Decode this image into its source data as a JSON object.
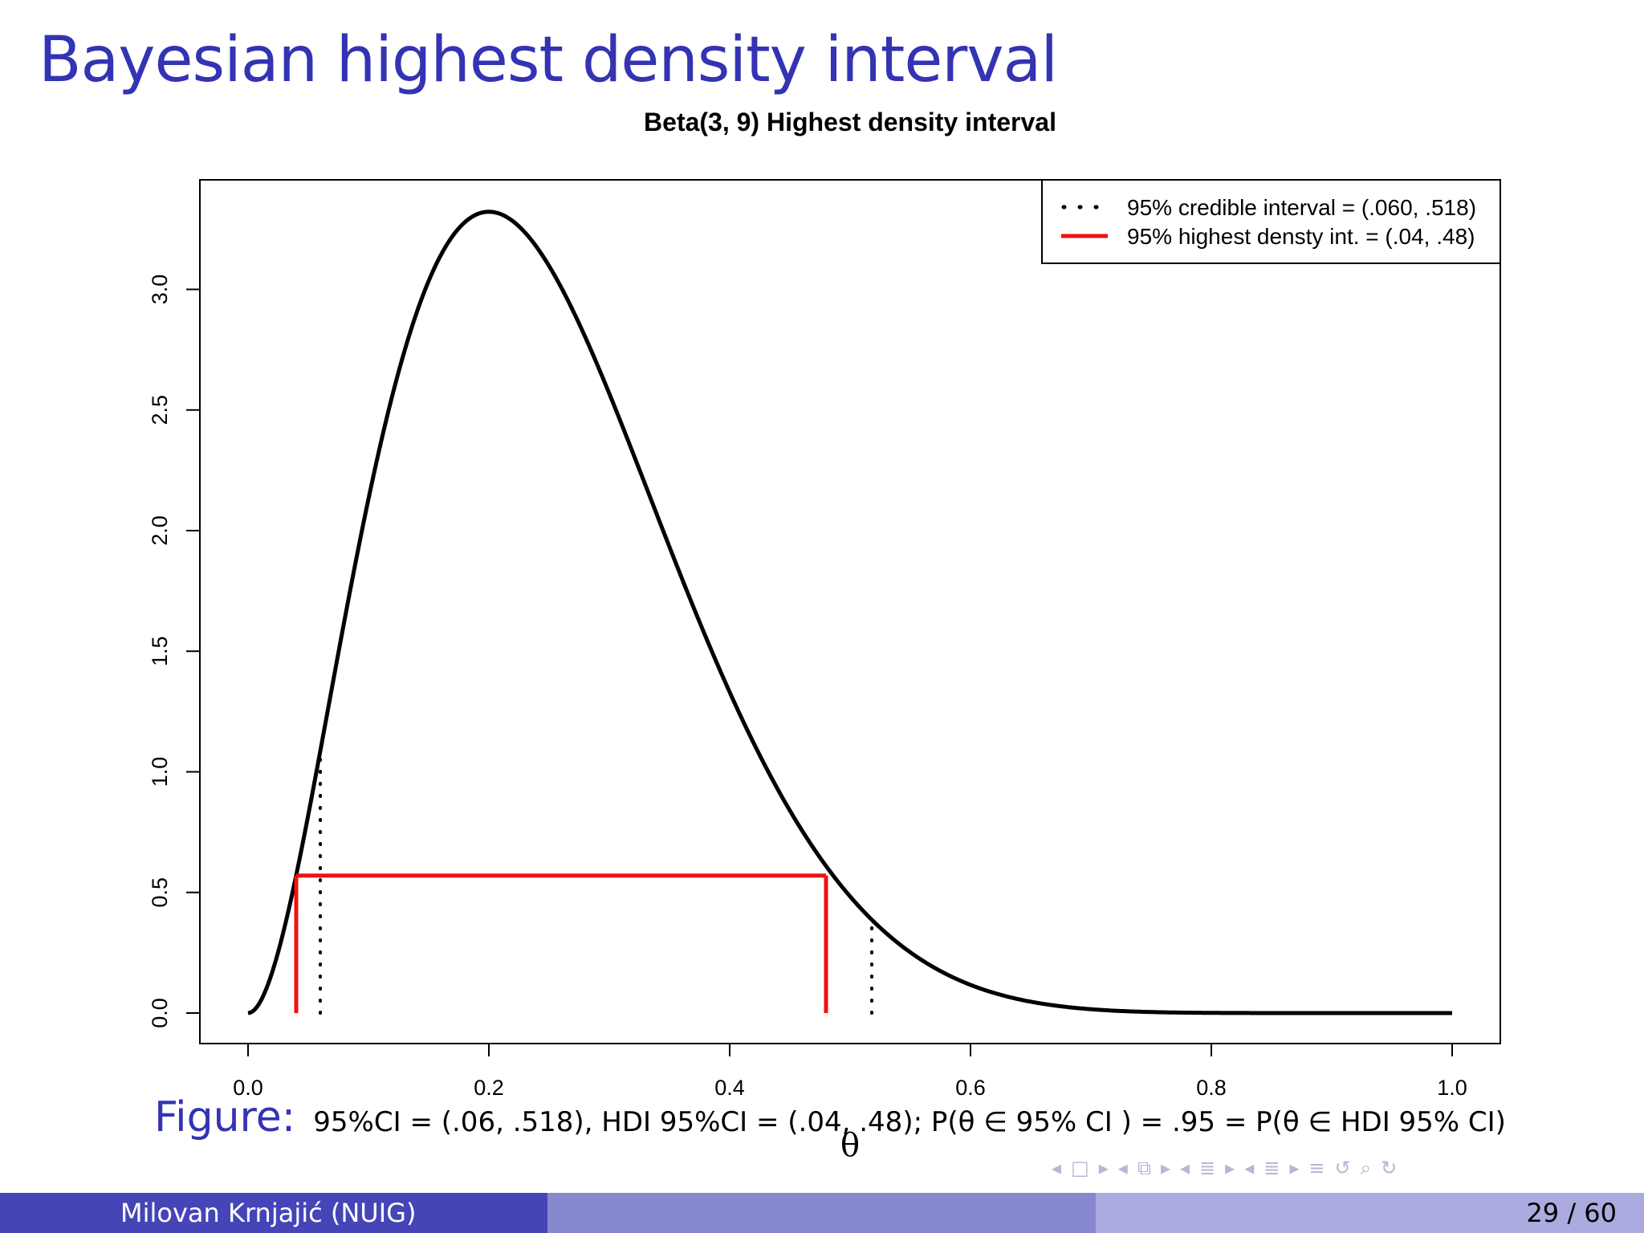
{
  "slide": {
    "title": "Bayesian highest density interval",
    "author": "Milovan Krnjajić  (NUIG)",
    "page": "29 / 60",
    "colors": {
      "title": "#3333b3",
      "footer_dark": "#4545b8",
      "footer_mid": "#8787cf",
      "footer_light": "#ababe0"
    }
  },
  "caption": {
    "label": "Figure:",
    "text": "95%CI = (.06, .518), HDI 95%CI = (.04, .48); P(θ ∈  95% CI ) = .95 = P(θ ∈  HDI 95% CI)"
  },
  "nav_icons": [
    "frame-prev-icon",
    "frame-icon",
    "frame-next-icon",
    "subsection-prev-icon",
    "subsection-icon",
    "subsection-next-icon",
    "section-prev-icon",
    "section-icon",
    "section-next-icon",
    "doc-prev-icon",
    "doc-icon",
    "doc-next-icon",
    "align-icon",
    "back-icon",
    "search-icon",
    "forward-icon"
  ],
  "chart_data": {
    "type": "line",
    "title": "Beta(3, 9) Highest density interval",
    "xlabel": "θ",
    "ylabel": "",
    "xlim": [
      0,
      1
    ],
    "ylim": [
      0,
      3.3
    ],
    "x_ticks": [
      "0.0",
      "0.2",
      "0.4",
      "0.6",
      "0.8",
      "1.0"
    ],
    "y_ticks": [
      "0.0",
      "0.5",
      "1.0",
      "1.5",
      "2.0",
      "2.5",
      "3.0"
    ],
    "series": [
      {
        "name": "",
        "distribution": "Beta(3, 9)",
        "alpha": 3,
        "beta": 9,
        "color": "#000000"
      }
    ],
    "credible_interval": {
      "lower": 0.06,
      "upper": 0.518,
      "style": "dotted",
      "color": "#000000"
    },
    "hdi": {
      "lower": 0.04,
      "upper": 0.48,
      "density": 0.57,
      "color": "#ee1111"
    },
    "legend": {
      "position": "top-right",
      "entries": [
        {
          "label": "95% credible interval = (.060, .518)",
          "style": "dotted",
          "color": "#000000"
        },
        {
          "label": "95% highest densty int. = (.04, .48)",
          "style": "solid",
          "color": "#ee1111"
        }
      ]
    },
    "grid": false
  }
}
